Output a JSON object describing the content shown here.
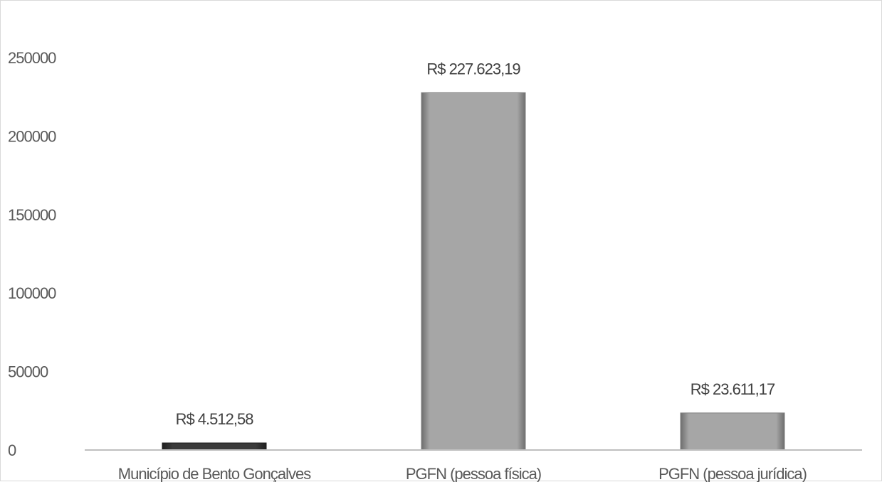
{
  "chart_data": {
    "type": "bar",
    "title": "",
    "xlabel": "",
    "ylabel": "",
    "categories": [
      "Município de Bento Gonçalves",
      "PGFN (pessoa física)",
      "PGFN (pessoa jurídica)"
    ],
    "values": [
      4512.58,
      227623.19,
      23611.17
    ],
    "data_labels": [
      "R$ 4.512,58",
      "R$ 227.623,19",
      "R$ 23.611,17"
    ],
    "bar_colors": [
      "#3a3a3a",
      "#a6a6a6",
      "#a6a6a6"
    ],
    "ylim": [
      0,
      250000
    ],
    "yticks": [
      0,
      50000,
      100000,
      150000,
      200000,
      250000
    ],
    "ytick_labels": [
      "0",
      "50000",
      "100000",
      "150000",
      "200000",
      "250000"
    ],
    "grid": false,
    "legend": "none"
  }
}
